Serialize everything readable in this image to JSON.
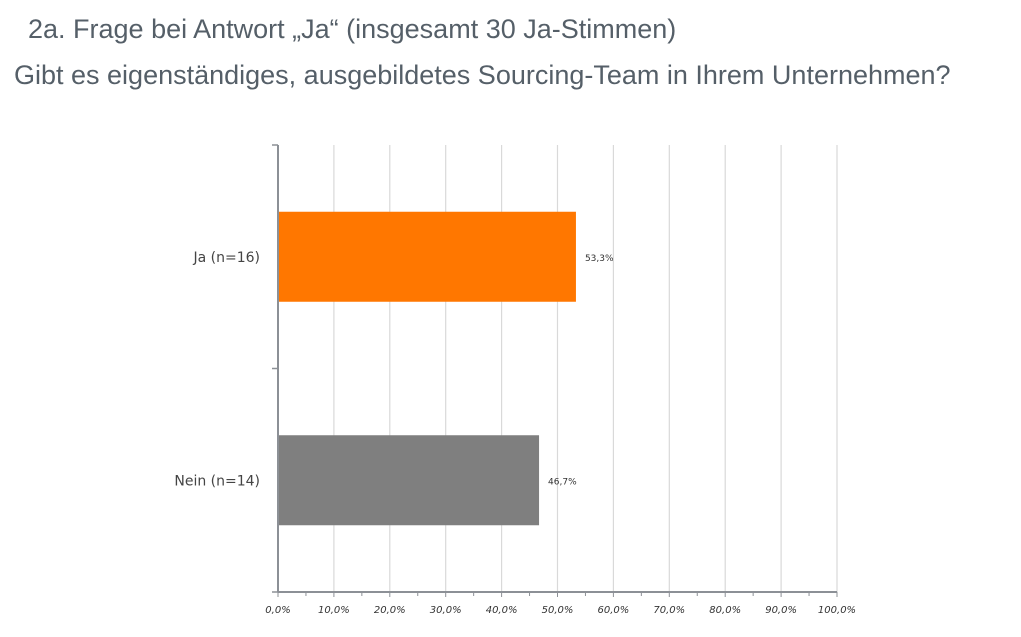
{
  "title_line1": "2a. Frage bei Antwort „Ja“ (insgesamt 30 Ja-Stimmen)",
  "title_line2": "Gibt es eigenständiges, ausgebildetes Sourcing-Team in Ihrem Unternehmen?",
  "chart_data": {
    "type": "bar",
    "orientation": "horizontal",
    "categories": [
      "Ja (n=16)",
      "Nein (n=14)"
    ],
    "values": [
      53.3,
      46.7
    ],
    "data_labels": [
      "53,3%",
      "46,7%"
    ],
    "colors": [
      "#ff7700",
      "#7f7f7f"
    ],
    "xlim": [
      0,
      100
    ],
    "xticks": [
      "0,0%",
      "10,0%",
      "20,0%",
      "30,0%",
      "40,0%",
      "50,0%",
      "60,0%",
      "70,0%",
      "80,0%",
      "90,0%",
      "100,0%"
    ],
    "grid": true,
    "legend": "none"
  }
}
